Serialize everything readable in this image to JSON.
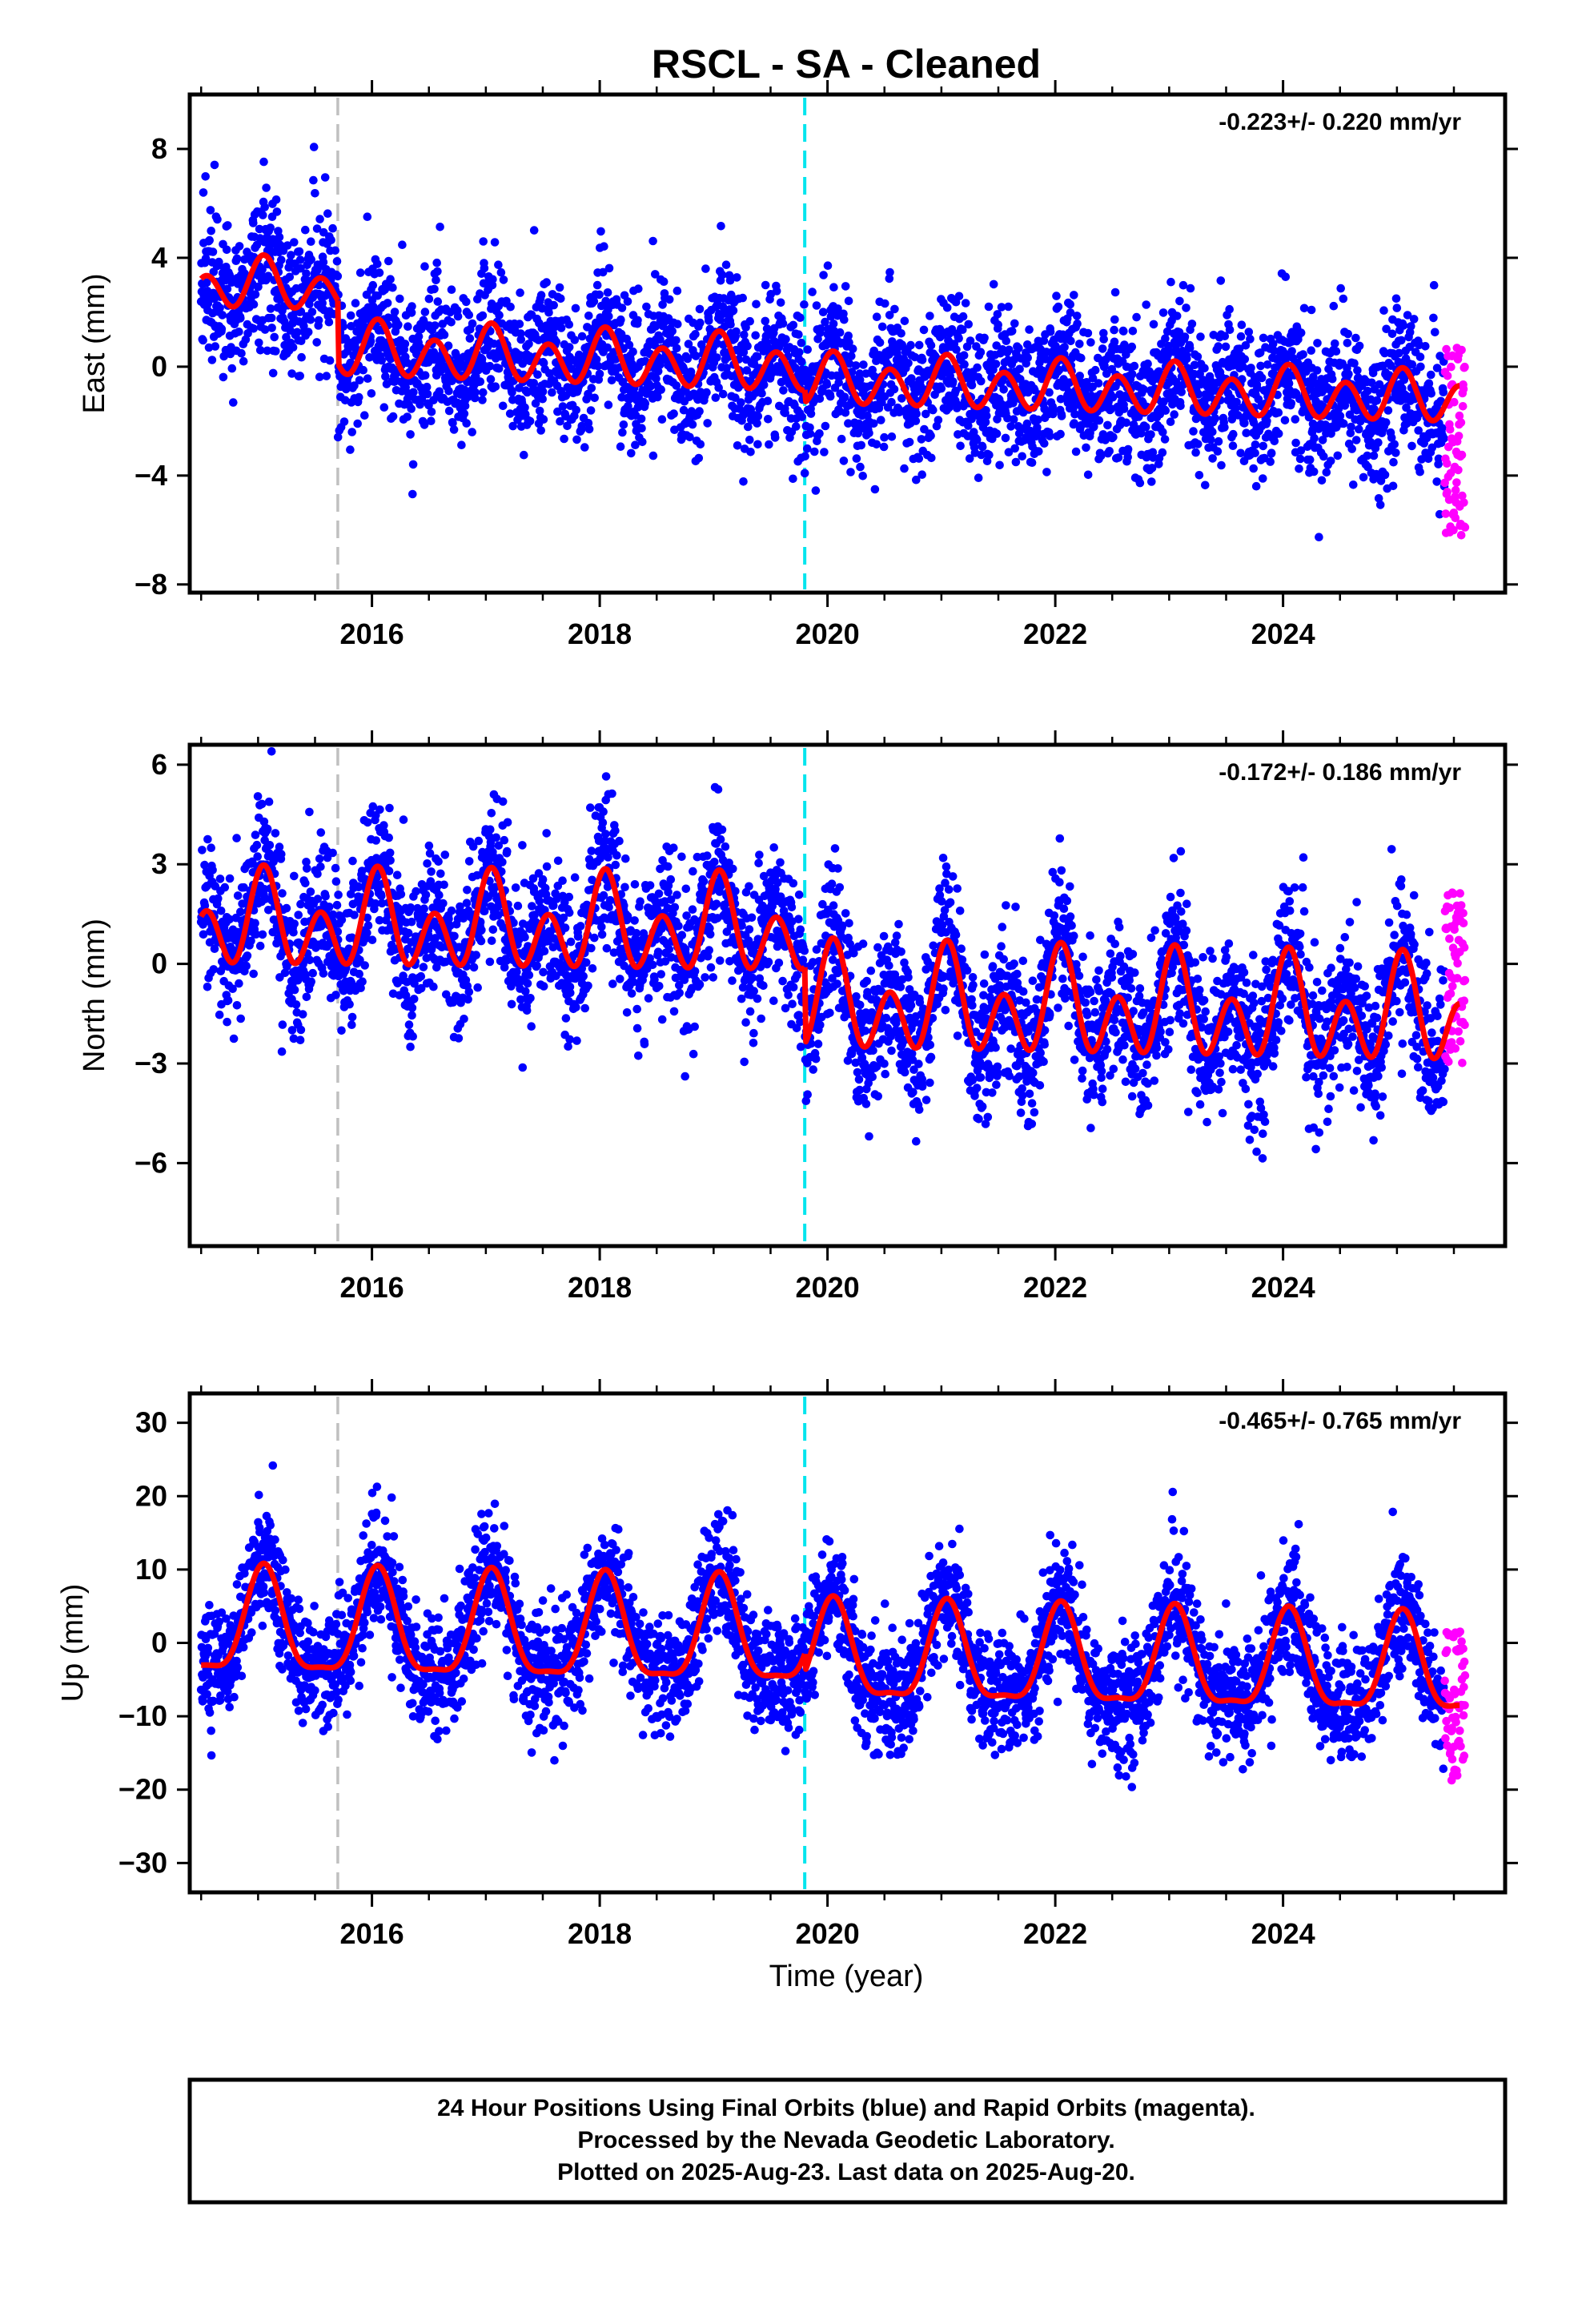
{
  "title": "RSCL  - SA - Cleaned",
  "xlabel": "Time (year)",
  "footer": {
    "line1": "24 Hour Positions Using Final Orbits (blue) and Rapid Orbits (magenta).",
    "line2": "Processed by the Nevada Geodetic Laboratory.",
    "line3": "Plotted on 2025-Aug-23. Last data on 2025-Aug-20."
  },
  "colors": {
    "final": "#0000ff",
    "rapid": "#ff00ff",
    "model": "#ff0000",
    "equipment_change": "#c0c0c0",
    "earthquake": "#00e5ee"
  },
  "chart_data": [
    {
      "type": "scatter",
      "component": "east",
      "ylabel": "East (mm)",
      "rate": "-0.223+/- 0.220 mm/yr",
      "xlim": [
        2014.4,
        2025.95
      ],
      "ylim": [
        -8.3,
        10
      ],
      "xticks": [
        2016,
        2018,
        2020,
        2022,
        2024
      ],
      "yticks": [
        -8,
        -4,
        0,
        4,
        8
      ],
      "offset_lines": [
        {
          "x": 2015.7,
          "kind": "equipment"
        },
        {
          "x": 2019.8,
          "kind": "earthquake"
        }
      ],
      "model": {
        "segments": [
          {
            "x0": 2014.5,
            "x1": 2015.7,
            "level_start": 3.0,
            "level_end": 2.9,
            "annual_amp": 0.4,
            "semi_amp": 0.75
          },
          {
            "x0": 2015.7,
            "x1": 2019.8,
            "level_start": 0.6,
            "level_end": 0.0,
            "annual_amp": 0.35,
            "semi_amp": 0.85
          },
          {
            "x0": 2019.8,
            "x1": 2025.55,
            "level_start": -0.5,
            "level_end": -1.2,
            "annual_amp": 0.3,
            "semi_amp": 0.8
          }
        ]
      },
      "scatter_sd": 1.3,
      "rapid": {
        "x0": 2025.42,
        "x1": 2025.6,
        "y_range": [
          -6.2,
          0.8
        ]
      }
    },
    {
      "type": "scatter",
      "component": "north",
      "ylabel": "North (mm)",
      "rate": "-0.172+/- 0.186 mm/yr",
      "xlim": [
        2014.4,
        2025.95
      ],
      "ylim": [
        -8.5,
        6.6
      ],
      "xticks": [
        2016,
        2018,
        2020,
        2022,
        2024
      ],
      "yticks": [
        -6,
        -3,
        0,
        3,
        6
      ],
      "offset_lines": [
        {
          "x": 2015.7,
          "kind": "equipment"
        },
        {
          "x": 2019.8,
          "kind": "earthquake"
        }
      ],
      "model": {
        "segments": [
          {
            "x0": 2014.5,
            "x1": 2019.8,
            "level_start": 1.2,
            "level_end": 1.0,
            "annual_amp": 0.7,
            "semi_amp": 1.1
          },
          {
            "x0": 2019.8,
            "x1": 2025.55,
            "level_start": -1.2,
            "level_end": -1.6,
            "annual_amp": 0.8,
            "semi_amp": 1.2
          }
        ]
      },
      "scatter_sd": 1.1,
      "rapid": {
        "x0": 2025.42,
        "x1": 2025.6,
        "y_range": [
          -3.0,
          2.5
        ]
      }
    },
    {
      "type": "scatter",
      "component": "up",
      "ylabel": "Up (mm)",
      "rate": "-0.465+/- 0.765 mm/yr",
      "xlim": [
        2014.4,
        2025.95
      ],
      "ylim": [
        -34,
        34
      ],
      "xticks": [
        2016,
        2018,
        2020,
        2022,
        2024
      ],
      "yticks": [
        -30,
        -20,
        -10,
        0,
        10,
        20,
        30
      ],
      "offset_lines": [
        {
          "x": 2015.7,
          "kind": "equipment"
        },
        {
          "x": 2019.8,
          "kind": "earthquake"
        }
      ],
      "model": {
        "segments": [
          {
            "x0": 2014.5,
            "x1": 2019.8,
            "level_start": 2.0,
            "level_end": 0.5,
            "annual_amp": 7.0,
            "semi_amp": 2.0
          },
          {
            "x0": 2019.8,
            "x1": 2025.55,
            "level_start": -2.0,
            "level_end": -4.0,
            "annual_amp": 6.5,
            "semi_amp": 2.0
          }
        ]
      },
      "scatter_sd": 4.0,
      "rapid": {
        "x0": 2025.42,
        "x1": 2025.6,
        "y_range": [
          -19,
          2
        ]
      }
    }
  ]
}
